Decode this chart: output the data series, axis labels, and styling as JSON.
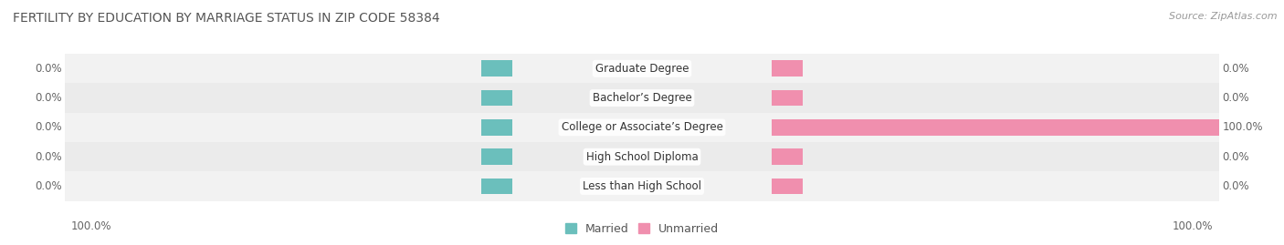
{
  "title": "FERTILITY BY EDUCATION BY MARRIAGE STATUS IN ZIP CODE 58384",
  "source": "Source: ZipAtlas.com",
  "categories": [
    "Less than High School",
    "High School Diploma",
    "College or Associate’s Degree",
    "Bachelor’s Degree",
    "Graduate Degree"
  ],
  "married_values": [
    0.0,
    0.0,
    0.0,
    0.0,
    0.0
  ],
  "unmarried_values": [
    0.0,
    0.0,
    100.0,
    0.0,
    0.0
  ],
  "married_left_labels": [
    "0.0%",
    "0.0%",
    "0.0%",
    "0.0%",
    "0.0%"
  ],
  "unmarried_right_labels": [
    "0.0%",
    "0.0%",
    "100.0%",
    "0.0%",
    "0.0%"
  ],
  "left_axis_label": "100.0%",
  "right_axis_label": "100.0%",
  "married_color": "#6BBFBC",
  "unmarried_color": "#F08FAE",
  "row_bg_even": "#F2F2F2",
  "row_bg_odd": "#EBEBEB",
  "title_fontsize": 10,
  "source_fontsize": 8,
  "label_fontsize": 8.5,
  "category_fontsize": 8.5,
  "background_color": "#FFFFFF",
  "legend_married": "Married",
  "legend_unmarried": "Unmarried",
  "xlim_left": 100,
  "xlim_right": 100,
  "stub_size": 7
}
